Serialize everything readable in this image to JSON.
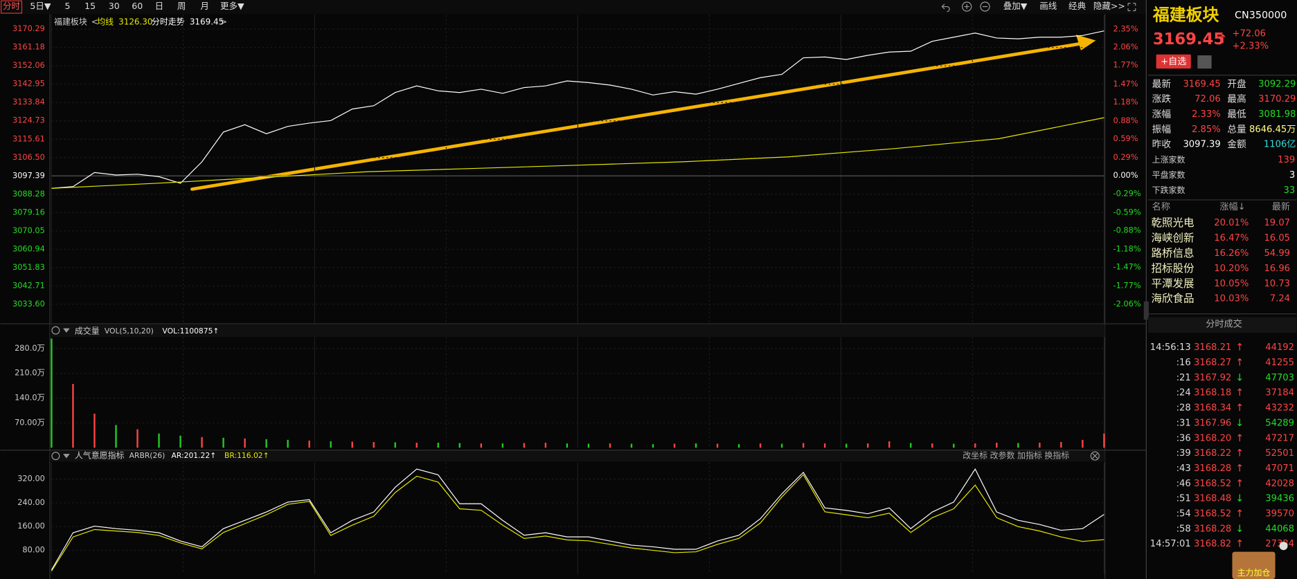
{
  "toolbar": {
    "tabs": [
      "分时",
      "5日▼",
      "5",
      "15",
      "30",
      "60",
      "日",
      "周",
      "月",
      "更多▼"
    ],
    "right": [
      "叠加▼",
      "画线",
      "经典",
      "隐藏>>"
    ]
  },
  "chart_data": [
    {
      "type": "line",
      "title": "福建板块",
      "header": [
        "均线",
        "3126.30",
        "分时走势",
        "3169.45"
      ],
      "series": [
        {
          "name": "分时走势",
          "color": "#ffffff",
          "values": [
            3091.23,
            3092.06,
            3099.03,
            3097.8,
            3098.21,
            3096.98,
            3093.7,
            3104.37,
            3119.14,
            3122.83,
            3118.32,
            3122.01,
            3123.65,
            3124.88,
            3130.63,
            3132.27,
            3138.83,
            3142.12,
            3139.65,
            3138.83,
            3140.48,
            3138.42,
            3141.3,
            3142.12,
            3144.58,
            3143.76,
            3142.53,
            3140.48,
            3137.6,
            3139.24,
            3138.01,
            3140.48,
            3143.35,
            3146.22,
            3147.86,
            3156.07,
            3156.48,
            3155.25,
            3157.3,
            3158.94,
            3159.35,
            3164.28,
            3166.33,
            3168.38,
            3165.92,
            3165.51,
            3166.33,
            3166.33,
            3167.15,
            3169.45
          ]
        },
        {
          "name": "均线",
          "color": "#e8e800",
          "values": [
            3091.23,
            3093.7,
            3096.57,
            3099.44,
            3101.08,
            3102.72,
            3104.37,
            3106.83,
            3110.93,
            3115.86,
            3126.3
          ]
        }
      ],
      "ylim": [
        3023.9,
        3177.4
      ],
      "baseline": 3097.39,
      "yticks": [
        3170.29,
        3161.18,
        3152.06,
        3142.95,
        3133.84,
        3124.73,
        3115.61,
        {
          "value": 3106.5,
          "label": "3106.50"
        },
        3097.39,
        3088.28,
        3079.16,
        3070.05,
        3060.94,
        3051.83,
        3042.71,
        {
          "value": 3033.6,
          "label": "3033.60"
        }
      ],
      "y2lim": [
        -2.373,
        2.583
      ],
      "y2ticks": [
        {
          "value": 2.35,
          "label": "2.35%"
        },
        {
          "value": 2.06,
          "label": "2.06%"
        },
        {
          "value": 1.77,
          "label": "1.77%"
        },
        {
          "value": 1.47,
          "label": "1.47%"
        },
        {
          "value": 1.18,
          "label": "1.18%"
        },
        {
          "value": 0.88,
          "label": "0.88%"
        },
        {
          "value": 0.59,
          "label": "0.59%"
        },
        {
          "value": 0.29,
          "label": "0.29%"
        },
        {
          "value": 0,
          "label": "0.00%"
        },
        {
          "value": -0.29,
          "label": "-0.29%"
        },
        {
          "value": -0.59,
          "label": "-0.59%"
        },
        {
          "value": -0.88,
          "label": "-0.88%"
        },
        {
          "value": -1.18,
          "label": "-1.18%"
        },
        {
          "value": -1.47,
          "label": "-1.47%"
        },
        {
          "value": -1.77,
          "label": "-1.77%"
        },
        {
          "value": -2.06,
          "label": "-2.06%"
        }
      ]
    },
    {
      "type": "bar",
      "title": "成交量",
      "params": "VOL(5,10,20)",
      "readouts": [
        "VOL:1100875↑"
      ],
      "values": [
        308,
        180,
        96,
        64,
        52,
        40,
        34,
        30,
        28,
        26,
        24,
        22,
        20,
        18,
        17,
        16,
        15,
        14,
        14,
        13,
        12,
        12,
        13,
        14,
        12,
        11,
        12,
        11,
        10,
        11,
        12,
        11,
        10,
        12,
        11,
        13,
        12,
        11,
        12,
        18,
        13,
        12,
        11,
        12,
        14,
        13,
        14,
        16,
        22,
        40
      ],
      "colors": [
        "#22cc22",
        "#ff4444",
        "#ff4444",
        "#22cc22",
        "#ff4444",
        "#22cc22",
        "#22cc22",
        "#ff4444",
        "#22cc22",
        "#ff4444",
        "#22cc22",
        "#22cc22",
        "#ff4444",
        "#22cc22",
        "#ff4444",
        "#ff4444",
        "#22cc22",
        "#ff4444",
        "#22cc22",
        "#22cc22",
        "#ff4444",
        "#22cc22",
        "#ff4444",
        "#ff4444",
        "#22cc22",
        "#22cc22",
        "#ff4444",
        "#22cc22",
        "#22cc22",
        "#ff4444",
        "#22cc22",
        "#ff4444",
        "#22cc22",
        "#ff4444",
        "#22cc22",
        "#ff4444",
        "#ff4444",
        "#22cc22",
        "#ff4444",
        "#ff4444",
        "#22cc22",
        "#ff4444",
        "#22cc22",
        "#ff4444",
        "#ff4444",
        "#22cc22",
        "#ff4444",
        "#ff4444",
        "#ff4444",
        "#ff4444"
      ],
      "ylim": [
        0,
        312.7
      ],
      "yticks": [
        {
          "value": 280,
          "label": "280.0万"
        },
        {
          "value": 210,
          "label": "210.0万"
        },
        {
          "value": 140,
          "label": "140.0万"
        },
        {
          "value": 70,
          "label": "70.00万"
        }
      ]
    },
    {
      "type": "line",
      "title": "人气意愿指标",
      "params": "ARBR(26)",
      "readouts": [
        "AR:201.22↑",
        "BR:116.02↑"
      ],
      "buttons": [
        "改坐标",
        "改参数",
        "加指标",
        "换指标"
      ],
      "series": [
        {
          "color": "#ffffff",
          "values": [
            13.94,
            139.35,
            161.65,
            153.29,
            147.71,
            139.35,
            111.48,
            91.97,
            153.29,
            181.16,
            209.03,
            242.47,
            250.83,
            139.35,
            181.16,
            209.03,
            292.64,
            353.95,
            334.44,
            236.9,
            236.9,
            181.16,
            130.99,
            139.35,
            125.42,
            125.42,
            111.48,
            97.55,
            91.97,
            83.61,
            83.61,
            111.48,
            130.99,
            186.73,
            270.34,
            342.8,
            222.96,
            214.6,
            203.45,
            222.96,
            153.29,
            209.03,
            242.47,
            353.95,
            209.03,
            181.16,
            167.22,
            147.71,
            153.29,
            201.22
          ]
        },
        {
          "color": "#e8e800",
          "values": [
            10,
            125,
            150,
            145,
            140,
            130,
            105,
            85,
            140,
            170,
            200,
            235,
            245,
            130,
            165,
            195,
            275,
            330,
            310,
            220,
            215,
            165,
            120,
            128,
            115,
            112,
            100,
            88,
            80,
            72,
            75,
            100,
            120,
            172,
            260,
            335,
            210,
            200,
            190,
            205,
            140,
            190,
            220,
            300,
            190,
            160,
            145,
            125,
            110,
            116.02
          ]
        }
      ],
      "ylim": [
        0,
        376
      ],
      "yticks": [
        {
          "value": 320,
          "label": "320.00"
        },
        {
          "value": 240,
          "label": "240.00"
        },
        {
          "value": 160,
          "label": "160.00"
        },
        {
          "value": 80,
          "label": "80.00"
        }
      ]
    }
  ],
  "side_panel": {
    "name": "福建板块",
    "code": "CN350000",
    "price": "3169.45",
    "arrow": "↑",
    "change": "+72.06",
    "pct": "+2.33%",
    "button": "+自选",
    "quote": [
      [
        "最新",
        "3169.45",
        "开盘",
        "3092.29"
      ],
      [
        "涨跌",
        "72.06",
        "最高",
        "3170.29"
      ],
      [
        "涨幅",
        "2.33%",
        "最低",
        "3081.98"
      ],
      [
        "振幅",
        "2.85%",
        "总量",
        "8646.45万"
      ],
      [
        "昨收",
        "3097.39",
        "金额",
        "1106亿"
      ]
    ],
    "counts": [
      [
        "上涨家数",
        "139"
      ],
      [
        "平盘家数",
        "3"
      ],
      [
        "下跌家数",
        "33"
      ]
    ],
    "stocks_header": [
      "名称",
      "涨幅↓",
      "最新"
    ],
    "stocks": [
      [
        "乾照光电",
        "20.01%",
        "19.07"
      ],
      [
        "海峡创新",
        "16.47%",
        "16.05"
      ],
      [
        "路桥信息",
        "16.26%",
        "54.99"
      ],
      [
        "招标股份",
        "10.20%",
        "16.96"
      ],
      [
        "平潭发展",
        "10.05%",
        "10.73"
      ],
      [
        "海欣食品",
        "10.03%",
        "7.24"
      ]
    ],
    "trades_title": "分时成交",
    "trades": [
      [
        "14:56:13",
        "3168.21",
        "↑",
        "44192"
      ],
      [
        ":16",
        "3168.27",
        "↑",
        "41255"
      ],
      [
        ":21",
        "3167.92",
        "↓",
        "47703"
      ],
      [
        ":24",
        "3168.18",
        "↑",
        "37184"
      ],
      [
        ":28",
        "3168.34",
        "↑",
        "43232"
      ],
      [
        ":31",
        "3167.96",
        "↓",
        "54289"
      ],
      [
        ":36",
        "3168.20",
        "↑",
        "47217"
      ],
      [
        ":39",
        "3168.22",
        "↑",
        "52501"
      ],
      [
        ":43",
        "3168.28",
        "↑",
        "47071"
      ],
      [
        ":46",
        "3168.52",
        "↑",
        "42028"
      ],
      [
        ":51",
        "3168.48",
        "↓",
        "39436"
      ],
      [
        ":54",
        "3168.52",
        "↑",
        "39570"
      ],
      [
        ":58",
        "3168.28",
        "↓",
        "44068"
      ],
      [
        "14:57:01",
        "3168.82",
        "↑",
        "27384"
      ]
    ],
    "ad": "主力加仓"
  }
}
